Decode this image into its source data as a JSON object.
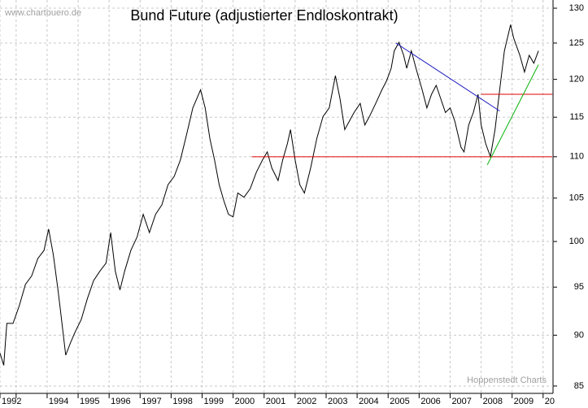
{
  "chart_data": {
    "type": "line",
    "title": "Bund Future (adjustierter Endloskontrakt)",
    "watermark": "www.chartbuero.de",
    "source": "Hoppenstedt Charts",
    "series": [
      {
        "color": "#000000",
        "x": [
          1992.48,
          1992.6,
          1992.7,
          1992.9,
          1993.1,
          1993.3,
          1993.5,
          1993.7,
          1993.9,
          1994.05,
          1994.2,
          1994.35,
          1994.45,
          1994.6,
          1994.75,
          1994.9,
          1995.1,
          1995.3,
          1995.5,
          1995.7,
          1995.9,
          1996.05,
          1996.2,
          1996.35,
          1996.5,
          1996.7,
          1996.9,
          1997.1,
          1997.3,
          1997.5,
          1997.7,
          1997.9,
          1998.1,
          1998.3,
          1998.5,
          1998.7,
          1998.95,
          1999.1,
          1999.25,
          1999.4,
          1999.55,
          1999.7,
          1999.85,
          2000.0,
          2000.15,
          2000.35,
          2000.55,
          2000.75,
          2000.95,
          2001.1,
          2001.25,
          2001.45,
          2001.6,
          2001.75,
          2001.85,
          2002.0,
          2002.15,
          2002.3,
          2002.5,
          2002.7,
          2002.9,
          2003.1,
          2003.3,
          2003.45,
          2003.6,
          2003.75,
          2003.9,
          2004.1,
          2004.25,
          2004.4,
          2004.6,
          2004.8,
          2004.95,
          2005.1,
          2005.2,
          2005.35,
          2005.5,
          2005.6,
          2005.75,
          2005.9,
          2006.1,
          2006.25,
          2006.4,
          2006.55,
          2006.7,
          2006.85,
          2007.0,
          2007.15,
          2007.35,
          2007.45,
          2007.6,
          2007.75,
          2007.9,
          2008.0,
          2008.15,
          2008.3,
          2008.45,
          2008.6,
          2008.75,
          2008.95,
          2009.05,
          2009.25,
          2009.4,
          2009.55,
          2009.7,
          2009.85
        ],
        "values": [
          88.2,
          87.0,
          91.2,
          91.2,
          93.0,
          95.3,
          96.2,
          98.1,
          99.0,
          101.4,
          98.5,
          94.7,
          92.0,
          88.0,
          89.2,
          90.3,
          91.6,
          93.8,
          95.7,
          96.7,
          97.6,
          101.0,
          96.7,
          94.7,
          96.7,
          99.0,
          100.5,
          103.1,
          101.0,
          103.1,
          104.2,
          106.6,
          107.6,
          109.6,
          112.8,
          116.2,
          118.6,
          116.2,
          112.3,
          109.6,
          106.6,
          104.7,
          103.1,
          102.8,
          105.6,
          105.1,
          106.1,
          108.1,
          109.6,
          110.6,
          108.6,
          107.1,
          109.6,
          111.6,
          113.4,
          109.6,
          106.6,
          105.6,
          108.6,
          112.3,
          115.1,
          116.2,
          120.5,
          117.4,
          113.4,
          114.5,
          115.6,
          116.8,
          114.0,
          115.1,
          116.8,
          118.6,
          119.8,
          121.5,
          123.9,
          125.1,
          123.3,
          121.5,
          123.9,
          121.5,
          118.6,
          116.2,
          118.0,
          119.2,
          117.4,
          115.6,
          116.2,
          114.5,
          111.2,
          110.6,
          114.0,
          115.6,
          118.0,
          114.0,
          111.6,
          110.0,
          113.4,
          118.6,
          123.9,
          127.6,
          125.7,
          123.3,
          121.0,
          123.3,
          122.2,
          123.9
        ]
      }
    ],
    "lines": [
      {
        "color": "#e00000",
        "x": [
          2000.6,
          2010.3
        ],
        "y": [
          110,
          110
        ]
      },
      {
        "color": "#e00000",
        "x": [
          2008.0,
          2010.3
        ],
        "y": [
          118,
          118
        ]
      },
      {
        "color": "#2020c0",
        "x": [
          2005.25,
          2008.6
        ],
        "y": [
          125,
          115.8
        ]
      },
      {
        "color": "#00b000",
        "x": [
          2008.2,
          2009.85
        ],
        "y": [
          109,
          122
        ]
      }
    ],
    "xlim": [
      1992.48,
      2010.32
    ],
    "ylim": [
      84.3,
      131.2
    ],
    "log_y": true,
    "grid": true,
    "xticks": [
      {
        "value": 1992.48,
        "label": "1992"
      },
      {
        "value": 1993,
        "label": null
      },
      1994,
      1995,
      1996,
      1997,
      1998,
      1999,
      2000,
      2001,
      2002,
      2003,
      2004,
      2005,
      2006,
      2007,
      2008,
      2009,
      {
        "value": 2010,
        "label": "20"
      }
    ],
    "yticks": [
      85,
      90,
      95,
      100,
      105,
      110,
      115,
      120,
      125,
      130
    ]
  }
}
